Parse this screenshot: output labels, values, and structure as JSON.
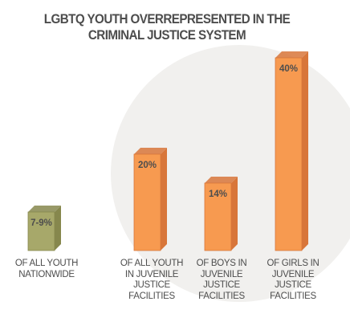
{
  "chart_data": {
    "type": "bar",
    "title": [
      "LGBTQ YOUTH OVERREPRESENTED IN THE",
      "CRIMINAL JUSTICE SYSTEM"
    ],
    "categories": [
      [
        "OF ALL YOUTH",
        "NATIONWIDE"
      ],
      [
        "OF ALL YOUTH",
        "IN JUVENILE",
        "JUSTICE",
        "FACILITIES"
      ],
      [
        "OF BOYS IN",
        "JUVENILE",
        "JUSTICE",
        "FACILITIES"
      ],
      [
        "OF GIRLS IN",
        "JUVENILE",
        "JUSTICE",
        "FACILITIES"
      ]
    ],
    "values": [
      8,
      20,
      14,
      40
    ],
    "data_labels": [
      "7-9%",
      "20%",
      "14%",
      "40%"
    ],
    "ylim": [
      0,
      40
    ],
    "grid": false,
    "legend": "none",
    "colors": {
      "first_bar": "#a7a86a",
      "first_bar_side": "#86874d",
      "bars": "#f79a50",
      "bars_side": "#d8763a",
      "background_circle": "#f1f0ee",
      "text": "#4d4d4d"
    }
  }
}
